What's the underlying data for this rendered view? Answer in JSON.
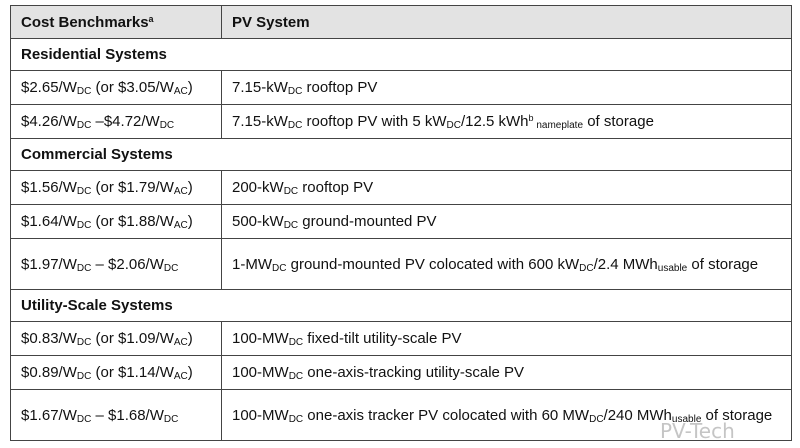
{
  "header": {
    "col1": [
      {
        "t": "Cost Benchmarks"
      },
      {
        "t": "a",
        "sup": true
      }
    ],
    "col2": [
      {
        "t": "PV System"
      }
    ]
  },
  "rows": [
    {
      "type": "section",
      "label": "Residential Systems"
    },
    {
      "type": "row",
      "c1": [
        {
          "t": "$2.65/W"
        },
        {
          "t": "DC",
          "sub": true
        },
        {
          "t": " (or $3.05/W"
        },
        {
          "t": "AC",
          "sub": true
        },
        {
          "t": ")"
        }
      ],
      "c2": [
        {
          "t": "7.15-kW"
        },
        {
          "t": "DC",
          "sub": true
        },
        {
          "t": " rooftop PV"
        }
      ]
    },
    {
      "type": "row",
      "c1": [
        {
          "t": "$4.26/W"
        },
        {
          "t": "DC",
          "sub": true
        },
        {
          "t": " –$4.72/W"
        },
        {
          "t": "DC",
          "sub": true
        }
      ],
      "c2": [
        {
          "t": "7.15-kW"
        },
        {
          "t": "DC",
          "sub": true
        },
        {
          "t": " rooftop PV with 5 kW"
        },
        {
          "t": "DC",
          "sub": true
        },
        {
          "t": "/12.5 kWh"
        },
        {
          "t": "b",
          "sup": true
        },
        {
          "t": " nameplate",
          "sub": true
        },
        {
          "t": " of storage"
        }
      ]
    },
    {
      "type": "section",
      "label": "Commercial Systems"
    },
    {
      "type": "row",
      "c1": [
        {
          "t": "$1.56/W"
        },
        {
          "t": "DC",
          "sub": true
        },
        {
          "t": " (or $1.79/W"
        },
        {
          "t": "AC",
          "sub": true
        },
        {
          "t": ")"
        }
      ],
      "c2": [
        {
          "t": "200-kW"
        },
        {
          "t": "DC",
          "sub": true
        },
        {
          "t": " rooftop PV"
        }
      ]
    },
    {
      "type": "row",
      "c1": [
        {
          "t": "$1.64/W"
        },
        {
          "t": "DC",
          "sub": true
        },
        {
          "t": " (or $1.88/W"
        },
        {
          "t": "AC",
          "sub": true
        },
        {
          "t": ")"
        }
      ],
      "c2": [
        {
          "t": "500-kW"
        },
        {
          "t": "DC",
          "sub": true
        },
        {
          "t": " ground-mounted PV"
        }
      ]
    },
    {
      "type": "tall",
      "c1": [
        {
          "t": "$1.97/W"
        },
        {
          "t": "DC",
          "sub": true
        },
        {
          "t": " – $2.06/W"
        },
        {
          "t": "DC",
          "sub": true
        }
      ],
      "c2": [
        {
          "t": "1-MW"
        },
        {
          "t": "DC",
          "sub": true
        },
        {
          "t": " ground-mounted PV colocated with 600 kW"
        },
        {
          "t": "DC",
          "sub": true
        },
        {
          "t": "/2.4 MWh"
        },
        {
          "t": "usable",
          "sub": true
        },
        {
          "t": " of storage"
        }
      ]
    },
    {
      "type": "section",
      "label": "Utility-Scale Systems"
    },
    {
      "type": "row",
      "c1": [
        {
          "t": "$0.83/W"
        },
        {
          "t": "DC",
          "sub": true
        },
        {
          "t": " (or $1.09/W"
        },
        {
          "t": "AC",
          "sub": true
        },
        {
          "t": ")"
        }
      ],
      "c2": [
        {
          "t": "100-MW"
        },
        {
          "t": "DC",
          "sub": true
        },
        {
          "t": " fixed-tilt utility-scale PV"
        }
      ]
    },
    {
      "type": "row",
      "c1": [
        {
          "t": "$0.89/W"
        },
        {
          "t": "DC",
          "sub": true
        },
        {
          "t": " (or $1.14/W"
        },
        {
          "t": "AC",
          "sub": true
        },
        {
          "t": ")"
        }
      ],
      "c2": [
        {
          "t": "100-MW"
        },
        {
          "t": "DC",
          "sub": true
        },
        {
          "t": " one-axis-tracking utility-scale PV"
        }
      ]
    },
    {
      "type": "tall",
      "c1": [
        {
          "t": "$1.67/W"
        },
        {
          "t": "DC",
          "sub": true
        },
        {
          "t": " – $1.68/W"
        },
        {
          "t": "DC",
          "sub": true
        }
      ],
      "c2": [
        {
          "t": "100-MW"
        },
        {
          "t": "DC",
          "sub": true
        },
        {
          "t": " one-axis tracker PV colocated with 60 MW"
        },
        {
          "t": "DC",
          "sub": true
        },
        {
          "t": "/240 MWh"
        },
        {
          "t": "usable",
          "sub": true
        },
        {
          "t": " of storage"
        }
      ]
    }
  ],
  "watermark": "PV-Tech"
}
